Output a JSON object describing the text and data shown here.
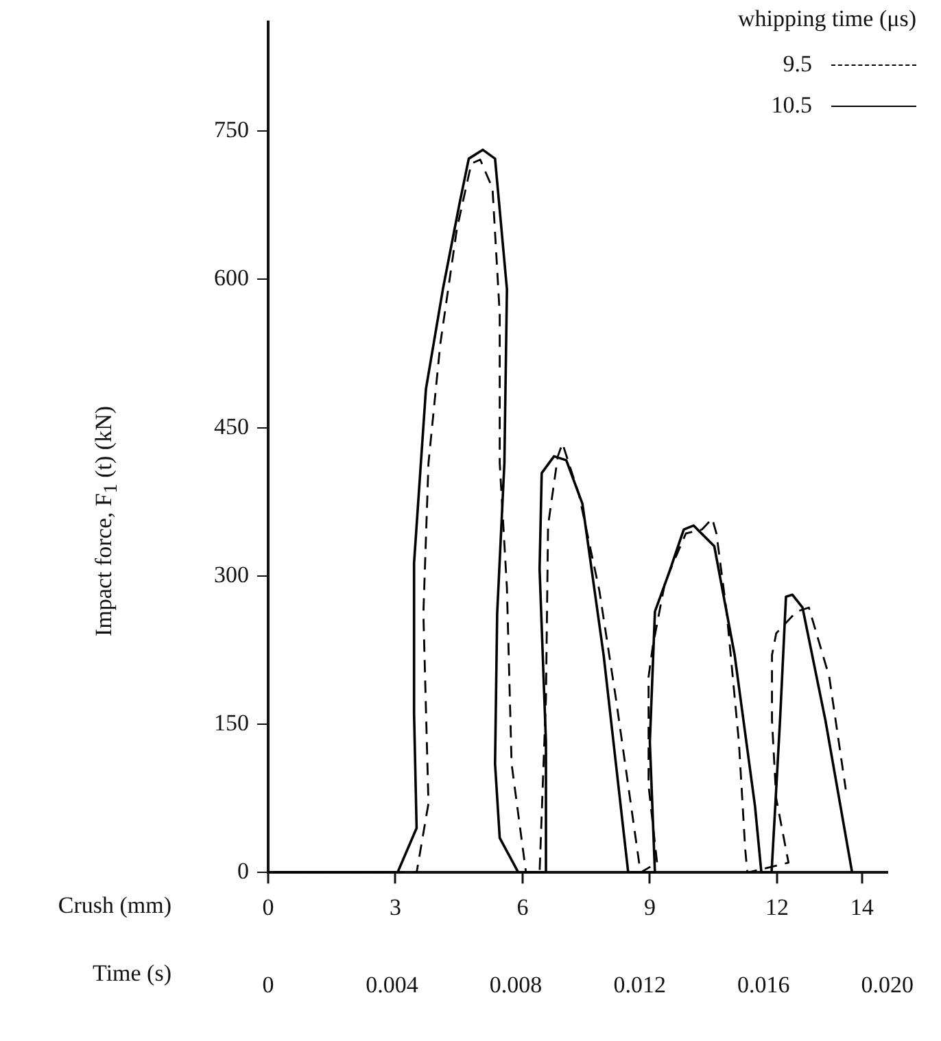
{
  "chart_data": {
    "type": "line",
    "xlabel": "Crush (mm)",
    "x2label": "Time (s)",
    "ylabel": "Impact force, F$_{1}$ (t) (kN)",
    "legend_title": "whipping time (μs)",
    "xlim": [
      0,
      14.6
    ],
    "xticks": [
      0,
      3,
      6,
      9,
      12,
      14
    ],
    "x2lim": [
      0,
      0.02
    ],
    "x2ticks": [
      0,
      {
        "value": 0.004,
        "label": "0.004"
      },
      {
        "value": 0.008,
        "label": "0.008"
      },
      {
        "value": 0.012,
        "label": "0.012"
      },
      {
        "value": 0.016,
        "label": "0.016"
      },
      {
        "value": 0.02,
        "label": "0.020"
      }
    ],
    "ylim": [
      0,
      860
    ],
    "yticks": [
      0,
      150,
      300,
      450,
      600,
      750
    ],
    "grid": false,
    "legend": "top right",
    "marker": "none",
    "series": [
      {
        "name": "9.5",
        "color": "#000000",
        "line_style": "dashed",
        "x": [
          0,
          3.5,
          3.78,
          3.66,
          3.78,
          4.06,
          4.45,
          4.79,
          5.0,
          5.29,
          5.46,
          5.46,
          5.63,
          5.74,
          6.08,
          6.4,
          6.55,
          6.6,
          6.83,
          6.94,
          7.33,
          7.81,
          8.2,
          8.78,
          9.17,
          8.97,
          8.97,
          9.07,
          9.36,
          9.85,
          10.23,
          10.47,
          10.57,
          10.81,
          11.1,
          11.25,
          11.3,
          12.27,
          11.98,
          11.88,
          11.88,
          11.98,
          12.46,
          12.75,
          13.23,
          13.62
        ],
        "values": [
          0,
          0,
          70,
          262,
          414,
          535,
          651,
          717,
          721,
          692,
          565,
          414,
          288,
          110,
          0,
          0,
          176,
          351,
          421,
          434,
          382,
          285,
          176,
          0,
          10,
          88,
          198,
          229,
          294,
          343,
          347,
          358,
          343,
          264,
          132,
          23,
          0,
          10,
          75,
          154,
          220,
          242,
          264,
          268,
          198,
          84
        ]
      },
      {
        "name": "10.5",
        "color": "#000000",
        "line_style": "solid",
        "x": [
          0,
          3.05,
          3.5,
          3.44,
          3.44,
          3.72,
          4.12,
          4.51,
          4.73,
          5.06,
          5.35,
          5.63,
          5.57,
          5.4,
          5.35,
          5.46,
          5.9,
          6.55,
          6.55,
          6.4,
          6.45,
          6.74,
          7.03,
          7.41,
          7.91,
          8.49,
          9.12,
          9.0,
          9.12,
          9.45,
          9.8,
          10.03,
          10.52,
          11.0,
          11.48,
          11.63,
          11.87,
          12.07,
          12.21,
          12.36,
          12.6,
          13.14,
          13.77
        ],
        "values": [
          0,
          0,
          45,
          161,
          313,
          489,
          590,
          676,
          722,
          731,
          722,
          590,
          414,
          262,
          110,
          35,
          0,
          0,
          132,
          307,
          404,
          421,
          417,
          373,
          220,
          0,
          0,
          132,
          264,
          303,
          347,
          351,
          330,
          220,
          67,
          0,
          0,
          154,
          279,
          281,
          268,
          154,
          0
        ]
      }
    ]
  }
}
